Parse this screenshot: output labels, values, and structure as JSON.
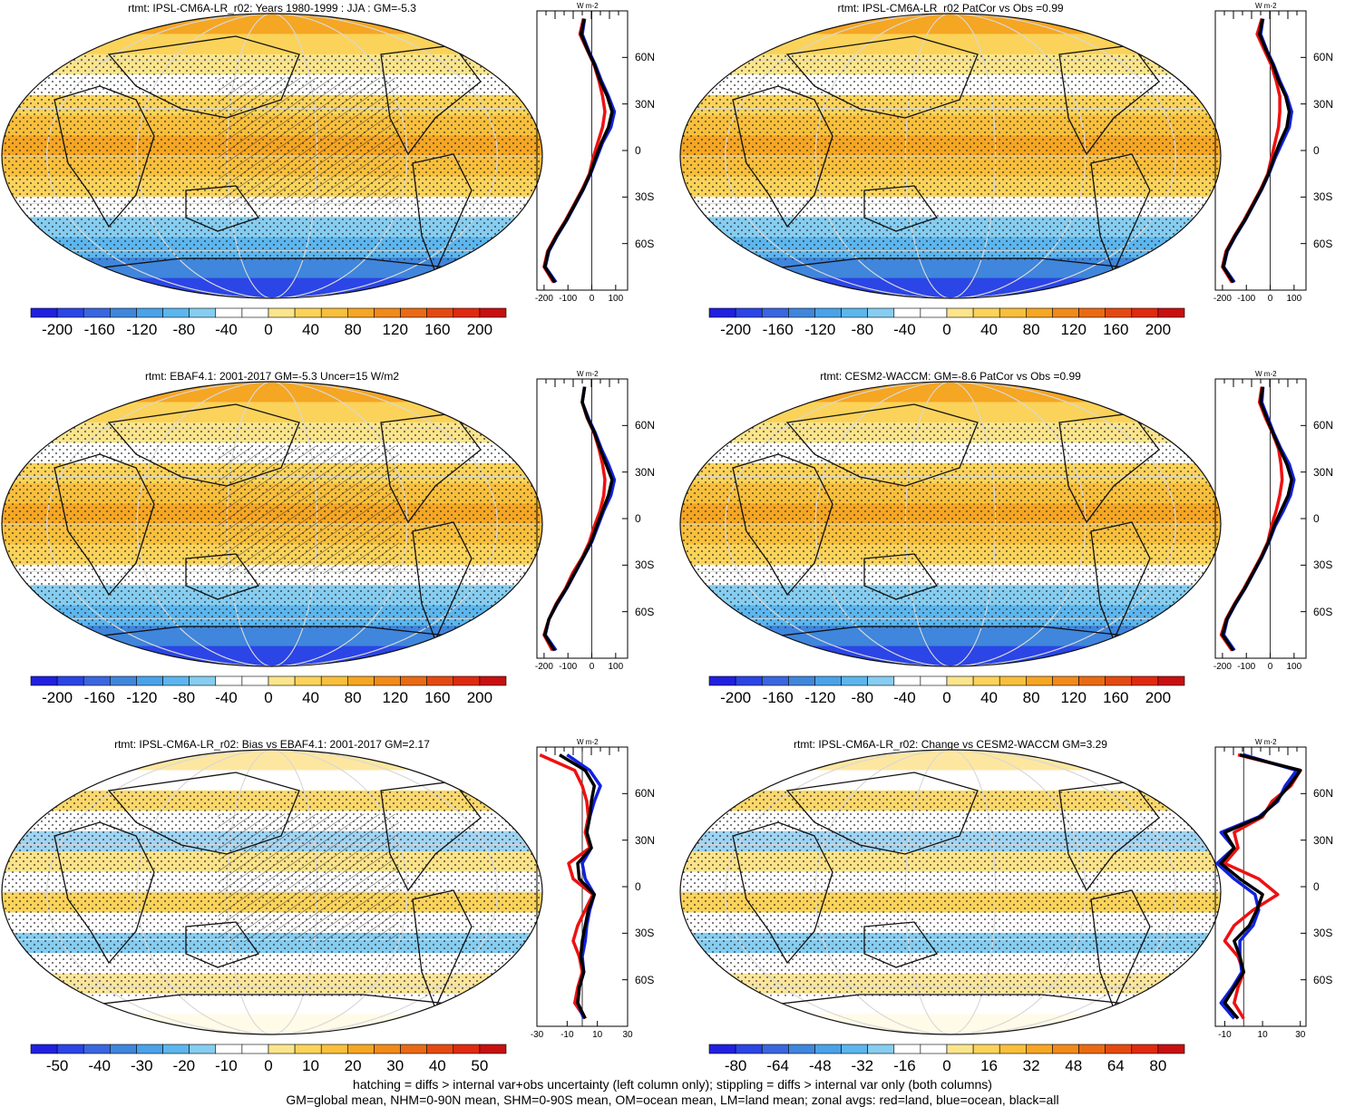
{
  "footer": {
    "line1": "hatching = diffs > internal var+obs uncertainty (left column only); stippling = diffs > internal var only (both columns)",
    "line2": "GM=global mean, NHM=0-90N mean, SHM=0-90S mean, OM=ocean mean, LM=land mean; zonal avgs: red=land, blue=ocean, black=all"
  },
  "colors": {
    "land": "#ee1111",
    "ocean": "#1122dd",
    "all": "#000000"
  },
  "chart_data": [
    {
      "type": "heatmap",
      "title": "rtmt: IPSL-CM6A-LR_r02: Years 1980-1999 : JJA : GM=-5.3",
      "colorbar_ticks": [
        "-200",
        "-160",
        "-120",
        "-80",
        "-40",
        "0",
        "40",
        "80",
        "120",
        "160",
        "200"
      ],
      "colormap": "bluewhitered_abs",
      "zonal": {
        "x_ticks": [
          "-200",
          "-100",
          "0",
          "100"
        ],
        "xlim": [
          -230,
          150
        ],
        "lat_ticks": [
          "60N",
          "30N",
          "0",
          "30S",
          "60S"
        ],
        "unit": "W m-2",
        "lat": [
          -85,
          -75,
          -65,
          -55,
          -45,
          -35,
          -25,
          -15,
          -5,
          5,
          15,
          25,
          35,
          45,
          55,
          65,
          75,
          85
        ],
        "series": [
          {
            "key": "land",
            "values": [
              -160,
              -200,
              -185,
              -150,
              -110,
              -75,
              -40,
              -10,
              5,
              25,
              45,
              55,
              45,
              30,
              10,
              -20,
              -50,
              -35
            ]
          },
          {
            "key": "ocean",
            "values": [
              -150,
              -195,
              -180,
              -145,
              -105,
              -70,
              -35,
              -5,
              20,
              45,
              80,
              95,
              70,
              40,
              15,
              -15,
              -40,
              -30
            ]
          },
          {
            "key": "all",
            "values": [
              -155,
              -197,
              -182,
              -147,
              -107,
              -72,
              -37,
              -7,
              15,
              40,
              70,
              85,
              65,
              35,
              12,
              -18,
              -45,
              -32
            ]
          }
        ]
      }
    },
    {
      "type": "heatmap",
      "title": "rtmt: IPSL-CM6A-LR_r02 PatCor vs Obs =0.99",
      "colorbar_ticks": [
        "-200",
        "-160",
        "-120",
        "-80",
        "-40",
        "0",
        "40",
        "80",
        "120",
        "160",
        "200"
      ],
      "colormap": "bluewhitered_abs",
      "zonal": {
        "x_ticks": [
          "-200",
          "-100",
          "0",
          "100"
        ],
        "xlim": [
          -230,
          150
        ],
        "lat_ticks": [
          "60N",
          "30N",
          "0",
          "30S",
          "60S"
        ],
        "unit": "W m-2",
        "lat": [
          -85,
          -75,
          -65,
          -55,
          -45,
          -35,
          -25,
          -15,
          -5,
          5,
          15,
          25,
          35,
          45,
          55,
          65,
          75,
          85
        ],
        "series": [
          {
            "key": "land",
            "values": [
              -160,
              -200,
              -185,
              -150,
              -110,
              -75,
              -40,
              -10,
              5,
              20,
              35,
              40,
              40,
              25,
              5,
              -25,
              -55,
              -35
            ]
          },
          {
            "key": "ocean",
            "values": [
              -150,
              -195,
              -180,
              -145,
              -105,
              -70,
              -35,
              -5,
              20,
              50,
              80,
              90,
              70,
              40,
              15,
              -15,
              -40,
              -30
            ]
          },
          {
            "key": "all",
            "values": [
              -155,
              -197,
              -182,
              -147,
              -107,
              -72,
              -37,
              -7,
              15,
              40,
              70,
              80,
              65,
              35,
              12,
              -18,
              -45,
              -32
            ]
          }
        ]
      }
    },
    {
      "type": "heatmap",
      "title": "rtmt: EBAF4.1: 2001-2017 GM=-5.3 Uncer=15 W/m2",
      "colorbar_ticks": [
        "-200",
        "-160",
        "-120",
        "-80",
        "-40",
        "0",
        "40",
        "80",
        "120",
        "160",
        "200"
      ],
      "colormap": "bluewhitered_abs",
      "zonal": {
        "x_ticks": [
          "-200",
          "-100",
          "0",
          "100"
        ],
        "xlim": [
          -230,
          150
        ],
        "lat_ticks": [
          "60N",
          "30N",
          "0",
          "30S",
          "60S"
        ],
        "unit": "W m-2",
        "lat": [
          -85,
          -75,
          -65,
          -55,
          -45,
          -35,
          -25,
          -15,
          -5,
          5,
          15,
          25,
          35,
          45,
          55,
          65,
          75,
          85
        ],
        "series": [
          {
            "key": "land",
            "values": [
              -165,
              -200,
              -180,
              -150,
              -110,
              -80,
              -40,
              -10,
              10,
              35,
              50,
              55,
              45,
              30,
              10,
              -20,
              -40,
              -30
            ]
          },
          {
            "key": "ocean",
            "values": [
              -150,
              -195,
              -180,
              -145,
              -105,
              -70,
              -35,
              0,
              25,
              50,
              80,
              95,
              70,
              40,
              15,
              -15,
              -40,
              -30
            ]
          },
          {
            "key": "all",
            "values": [
              -157,
              -197,
              -180,
              -147,
              -107,
              -72,
              -37,
              -3,
              20,
              45,
              70,
              85,
              60,
              35,
              12,
              -18,
              -40,
              -30
            ]
          }
        ]
      }
    },
    {
      "type": "heatmap",
      "title": "rtmt: CESM2-WACCM: GM=-8.6 PatCor vs Obs =0.99",
      "colorbar_ticks": [
        "-200",
        "-160",
        "-120",
        "-80",
        "-40",
        "0",
        "40",
        "80",
        "120",
        "160",
        "200"
      ],
      "colormap": "bluewhitered_abs",
      "zonal": {
        "x_ticks": [
          "-200",
          "-100",
          "0",
          "100"
        ],
        "xlim": [
          -230,
          150
        ],
        "lat_ticks": [
          "60N",
          "30N",
          "0",
          "30S",
          "60S"
        ],
        "unit": "W m-2",
        "lat": [
          -85,
          -75,
          -65,
          -55,
          -45,
          -35,
          -25,
          -15,
          -5,
          5,
          15,
          25,
          35,
          45,
          55,
          65,
          75,
          85
        ],
        "series": [
          {
            "key": "land",
            "values": [
              -160,
              -205,
              -185,
              -150,
              -110,
              -75,
              -40,
              -10,
              5,
              25,
              40,
              50,
              45,
              35,
              10,
              -20,
              -45,
              -35
            ]
          },
          {
            "key": "ocean",
            "values": [
              -150,
              -195,
              -180,
              -145,
              -105,
              -70,
              -35,
              -5,
              20,
              55,
              85,
              100,
              80,
              45,
              15,
              -10,
              -35,
              -30
            ]
          },
          {
            "key": "all",
            "values": [
              -155,
              -200,
              -182,
              -147,
              -107,
              -72,
              -37,
              -7,
              15,
              45,
              75,
              90,
              70,
              40,
              12,
              -15,
              -40,
              -32
            ]
          }
        ]
      }
    },
    {
      "type": "heatmap",
      "title": "rtmt: IPSL-CM6A-LR_r02: Bias vs EBAF4.1: 2001-2017 GM=2.17",
      "colorbar_ticks": [
        "-50",
        "-40",
        "-30",
        "-20",
        "-10",
        "0",
        "10",
        "20",
        "30",
        "40",
        "50"
      ],
      "colormap": "bluewhitered_bias",
      "zonal": {
        "x_ticks": [
          "-30",
          "-10",
          "10",
          "30"
        ],
        "xlim": [
          -30,
          30
        ],
        "lat_ticks": [
          "60N",
          "30N",
          "0",
          "30S",
          "60S"
        ],
        "unit": "W m-2",
        "lat": [
          -85,
          -75,
          -65,
          -55,
          -45,
          -35,
          -25,
          -15,
          -5,
          5,
          15,
          25,
          35,
          45,
          55,
          65,
          75,
          85
        ],
        "series": [
          {
            "key": "land",
            "values": [
              2,
              -5,
              -3,
              0,
              -2,
              -6,
              -3,
              2,
              7,
              -6,
              -9,
              5,
              2,
              4,
              3,
              0,
              -5,
              -28
            ]
          },
          {
            "key": "ocean",
            "values": [
              1,
              -3,
              -2,
              1,
              0,
              2,
              3,
              5,
              8,
              2,
              0,
              6,
              3,
              5,
              8,
              12,
              5,
              -10
            ]
          },
          {
            "key": "all",
            "values": [
              2,
              -3,
              -2,
              1,
              -1,
              0,
              2,
              4,
              8,
              -2,
              -3,
              6,
              3,
              5,
              6,
              8,
              2,
              -15
            ]
          }
        ]
      }
    },
    {
      "type": "heatmap",
      "title": "rtmt: IPSL-CM6A-LR_r02: Change vs CESM2-WACCM GM=3.29",
      "colorbar_ticks": [
        "-80",
        "-64",
        "-48",
        "-32",
        "-16",
        "0",
        "16",
        "32",
        "48",
        "64",
        "80"
      ],
      "colormap": "bluewhitered_bias",
      "zonal": {
        "x_ticks": [
          "-10",
          "10",
          "30"
        ],
        "xlim": [
          -15,
          33
        ],
        "lat_ticks": [
          "60N",
          "30N",
          "0",
          "30S",
          "60S"
        ],
        "unit": "W m-2",
        "lat": [
          -85,
          -75,
          -65,
          -55,
          -45,
          -35,
          -25,
          -15,
          -5,
          5,
          15,
          25,
          35,
          45,
          55,
          65,
          75,
          85
        ],
        "series": [
          {
            "key": "land",
            "values": [
              0,
              -5,
              -3,
              0,
              -3,
              -10,
              -5,
              5,
              18,
              8,
              -10,
              -3,
              -5,
              10,
              15,
              25,
              30,
              -3
            ]
          },
          {
            "key": "ocean",
            "values": [
              -5,
              -12,
              -6,
              -1,
              -2,
              -2,
              5,
              8,
              6,
              -5,
              -14,
              -5,
              -12,
              8,
              18,
              22,
              28,
              0
            ]
          },
          {
            "key": "all",
            "values": [
              -3,
              -10,
              -5,
              0,
              -2,
              -5,
              3,
              7,
              10,
              -2,
              -12,
              -5,
              -10,
              9,
              17,
              24,
              30,
              -2
            ]
          }
        ]
      }
    }
  ]
}
